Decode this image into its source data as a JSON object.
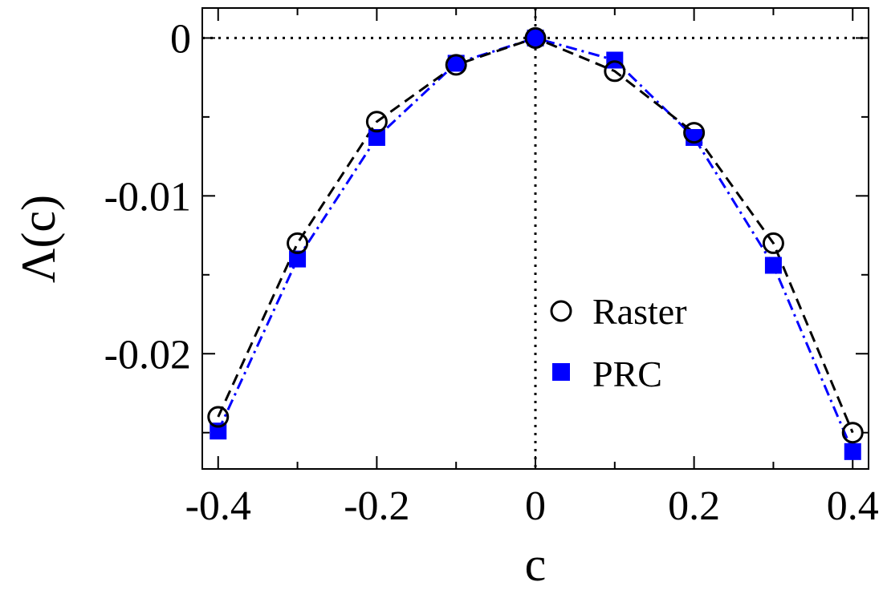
{
  "chart_data": {
    "type": "line",
    "title": "",
    "xlabel": "c",
    "ylabel": "Λ(c)",
    "xlim": [
      -0.42,
      0.42
    ],
    "ylim": [
      -0.0273,
      0.0019
    ],
    "x_ticks": [
      -0.4,
      -0.2,
      0,
      0.2,
      0.4
    ],
    "x_tick_labels": [
      "-0.4",
      "-0.2",
      "0",
      "0.2",
      "0.4"
    ],
    "x_minor_ticks": [
      -0.3,
      -0.1,
      0.1,
      0.3
    ],
    "y_ticks": [
      0,
      -0.01,
      -0.02
    ],
    "y_tick_labels": [
      "0",
      "-0.01",
      "-0.02"
    ],
    "y_minor_ticks": [
      -0.005,
      -0.015,
      -0.025
    ],
    "grid": false,
    "reference_lines": {
      "horizontal_y": 0,
      "vertical_x": 0,
      "style": "dotted"
    },
    "legend_position": "center-right",
    "series": [
      {
        "name": "Raster",
        "marker": "open-circle",
        "line": "dashed",
        "color": "#000000",
        "x": [
          -0.4,
          -0.3,
          -0.2,
          -0.1,
          0,
          0.1,
          0.2,
          0.3,
          0.4
        ],
        "y": [
          -0.024,
          -0.013,
          -0.0053,
          -0.0017,
          0,
          -0.0021,
          -0.006,
          -0.013,
          -0.025
        ]
      },
      {
        "name": "PRC",
        "marker": "filled-square",
        "line": "dash-dot",
        "color": "#0000ff",
        "x": [
          -0.4,
          -0.3,
          -0.2,
          -0.1,
          0,
          0.1,
          0.2,
          0.3,
          0.4
        ],
        "y": [
          -0.0249,
          -0.014,
          -0.0063,
          -0.0016,
          0,
          -0.0014,
          -0.0063,
          -0.0144,
          -0.0262
        ]
      }
    ]
  }
}
